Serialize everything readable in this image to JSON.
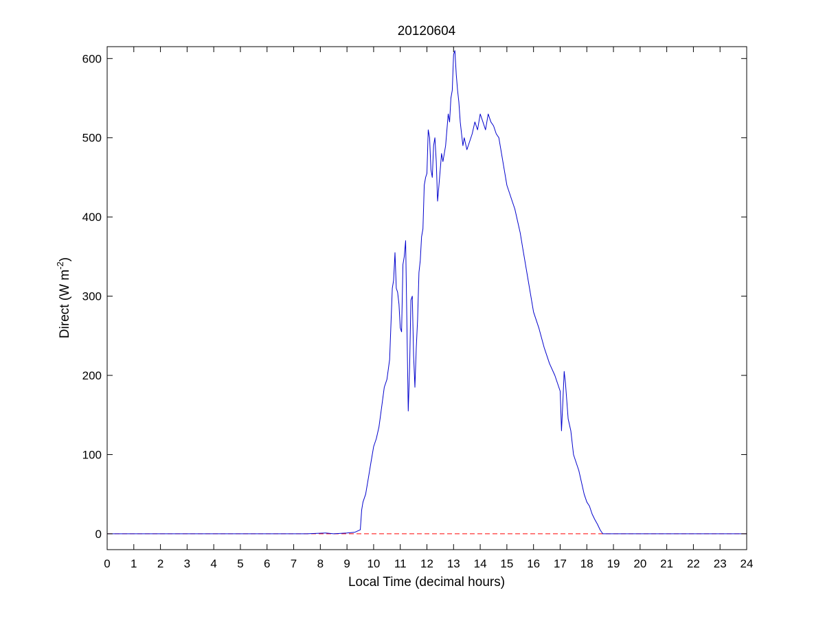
{
  "window": {
    "title": "20120604"
  },
  "chart_data": {
    "type": "line",
    "title": "20120604",
    "xlabel": "Local Time (decimal hours)",
    "ylabel_main": "Direct (W m",
    "ylabel_sup": "-2",
    "ylabel_close": ")",
    "xlim": [
      0,
      24
    ],
    "ylim": [
      -20,
      615
    ],
    "xticks": [
      0,
      1,
      2,
      3,
      4,
      5,
      6,
      7,
      8,
      9,
      10,
      11,
      12,
      13,
      14,
      15,
      16,
      17,
      18,
      19,
      20,
      21,
      22,
      23,
      24
    ],
    "yticks": [
      0,
      100,
      200,
      300,
      400,
      500,
      600
    ],
    "grid": false,
    "reference_line": {
      "y": 0,
      "style": "dashed",
      "color": "#ff0000"
    },
    "series": [
      {
        "color": "#0000cc",
        "x": [
          0,
          7.5,
          8.2,
          8.5,
          9.0,
          9.3,
          9.5,
          9.55,
          9.6,
          9.7,
          9.8,
          9.9,
          10.0,
          10.1,
          10.2,
          10.3,
          10.4,
          10.5,
          10.6,
          10.7,
          10.75,
          10.8,
          10.85,
          10.9,
          10.95,
          11.0,
          11.05,
          11.1,
          11.15,
          11.2,
          11.3,
          11.35,
          11.4,
          11.45,
          11.5,
          11.55,
          11.6,
          11.65,
          11.7,
          11.75,
          11.8,
          11.85,
          11.9,
          11.95,
          12.0,
          12.05,
          12.1,
          12.15,
          12.2,
          12.25,
          12.3,
          12.35,
          12.4,
          12.45,
          12.5,
          12.55,
          12.6,
          12.7,
          12.75,
          12.8,
          12.85,
          12.9,
          12.95,
          13.0,
          13.05,
          13.1,
          13.15,
          13.2,
          13.25,
          13.3,
          13.35,
          13.4,
          13.5,
          13.6,
          13.7,
          13.8,
          13.9,
          14.0,
          14.1,
          14.2,
          14.3,
          14.4,
          14.5,
          14.6,
          14.7,
          14.8,
          14.9,
          15.0,
          15.1,
          15.2,
          15.3,
          15.4,
          15.5,
          15.6,
          15.7,
          15.8,
          15.9,
          16.0,
          16.2,
          16.4,
          16.6,
          16.8,
          17.0,
          17.05,
          17.1,
          17.15,
          17.2,
          17.3,
          17.4,
          17.5,
          17.6,
          17.7,
          17.8,
          17.9,
          18.0,
          18.1,
          18.2,
          18.3,
          18.4,
          18.5,
          18.6,
          18.7,
          19.0,
          20.0,
          24.0
        ],
        "y": [
          0,
          0,
          1,
          0,
          1,
          2,
          5,
          30,
          40,
          50,
          70,
          90,
          110,
          120,
          135,
          160,
          185,
          195,
          220,
          310,
          320,
          355,
          310,
          305,
          290,
          260,
          255,
          340,
          350,
          370,
          155,
          210,
          295,
          300,
          225,
          185,
          235,
          270,
          330,
          345,
          375,
          385,
          440,
          450,
          455,
          510,
          500,
          460,
          450,
          490,
          500,
          470,
          420,
          440,
          460,
          480,
          470,
          490,
          510,
          530,
          520,
          550,
          560,
          605,
          610,
          580,
          560,
          545,
          520,
          505,
          490,
          500,
          485,
          495,
          505,
          520,
          510,
          530,
          520,
          510,
          530,
          520,
          515,
          505,
          500,
          480,
          460,
          440,
          430,
          420,
          410,
          395,
          380,
          360,
          340,
          320,
          300,
          280,
          260,
          235,
          215,
          200,
          180,
          130,
          165,
          205,
          190,
          145,
          130,
          100,
          90,
          80,
          65,
          50,
          40,
          35,
          25,
          18,
          12,
          5,
          0,
          0,
          0,
          0,
          0
        ]
      }
    ]
  }
}
